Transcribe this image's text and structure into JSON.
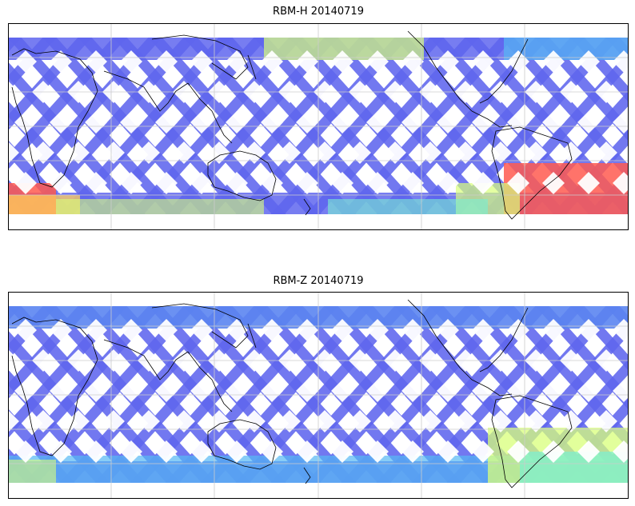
{
  "figure": {
    "panels": [
      {
        "title": "RBM-H 20140719",
        "variant": "H"
      },
      {
        "title": "RBM-Z 20140719",
        "variant": "Z"
      }
    ]
  },
  "colors": {
    "low": "#5f66ee",
    "mid_low": "#56b8f4",
    "mid": "#7af0d2",
    "mid_high": "#d8ff7a",
    "high": "#ffcf5a",
    "max": "#ff5a50",
    "coast": "#000000",
    "grid": "#cccccc"
  },
  "map": {
    "projection": "cylindrical",
    "gridlines": true,
    "coverage_bands": "satellite ground tracks (diamond pattern)"
  }
}
